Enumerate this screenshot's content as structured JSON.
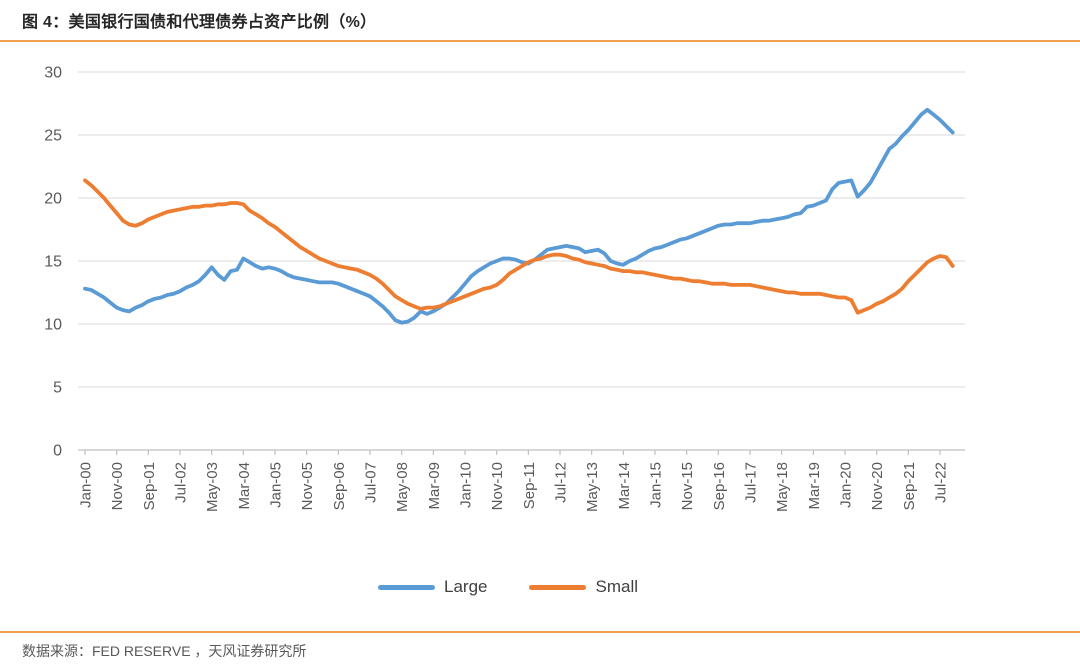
{
  "chart_data": {
    "type": "line",
    "title": "图 4：美国银行国债和代理债券占资产比例（%）",
    "source": "数据来源：FED RESERVE ，天风证券研究所",
    "ylim": [
      0,
      30
    ],
    "yticks": [
      0,
      5,
      10,
      15,
      20,
      25,
      30
    ],
    "x_start": "Jan-00",
    "x_end": "Nov-22",
    "months_per_point": 2,
    "xtick_every_points": 5,
    "xtick_labels": [
      "Jan-00",
      "Nov-00",
      "Sep-01",
      "Jul-02",
      "May-03",
      "Mar-04",
      "Jan-05",
      "Nov-05",
      "Sep-06",
      "Jul-07",
      "May-08",
      "Mar-09",
      "Jan-10",
      "Nov-10",
      "Sep-11",
      "Jul-12",
      "May-13",
      "Mar-14",
      "Jan-15",
      "Nov-15",
      "Sep-16",
      "Jul-17",
      "May-18",
      "Mar-19",
      "Jan-20",
      "Nov-20",
      "Sep-21",
      "Jul-22"
    ],
    "grid": "horizontal",
    "legend_position": "bottom-center",
    "legend": [
      {
        "name": "Large",
        "color": "#5B9BD5"
      },
      {
        "name": "Small",
        "color": "#ED7D31"
      }
    ],
    "series": [
      {
        "name": "Large",
        "color": "#5B9BD5",
        "values": [
          12.8,
          12.7,
          12.4,
          12.1,
          11.7,
          11.3,
          11.1,
          11.0,
          11.3,
          11.5,
          11.8,
          12.0,
          12.1,
          12.3,
          12.4,
          12.6,
          12.9,
          13.1,
          13.4,
          13.9,
          14.5,
          13.9,
          13.5,
          14.2,
          14.3,
          15.2,
          14.9,
          14.6,
          14.4,
          14.5,
          14.4,
          14.2,
          13.9,
          13.7,
          13.6,
          13.5,
          13.4,
          13.3,
          13.3,
          13.3,
          13.2,
          13.0,
          12.8,
          12.6,
          12.4,
          12.2,
          11.8,
          11.4,
          10.9,
          10.3,
          10.1,
          10.2,
          10.5,
          11.0,
          10.8,
          11.0,
          11.3,
          11.6,
          12.1,
          12.6,
          13.2,
          13.8,
          14.2,
          14.5,
          14.8,
          15.0,
          15.2,
          15.2,
          15.1,
          14.9,
          14.8,
          15.1,
          15.5,
          15.9,
          16.0,
          16.1,
          16.2,
          16.1,
          16.0,
          15.7,
          15.8,
          15.9,
          15.6,
          15.0,
          14.8,
          14.7,
          15.0,
          15.2,
          15.5,
          15.8,
          16.0,
          16.1,
          16.3,
          16.5,
          16.7,
          16.8,
          17.0,
          17.2,
          17.4,
          17.6,
          17.8,
          17.9,
          17.9,
          18.0,
          18.0,
          18.0,
          18.1,
          18.2,
          18.2,
          18.3,
          18.4,
          18.5,
          18.7,
          18.8,
          19.3,
          19.4,
          19.6,
          19.8,
          20.7,
          21.2,
          21.3,
          21.4,
          20.1,
          20.6,
          21.2,
          22.1,
          23.0,
          23.9,
          24.3,
          24.9,
          25.4,
          26.0,
          26.6,
          27.0,
          26.6,
          26.2,
          25.7,
          25.2
        ]
      },
      {
        "name": "Small",
        "color": "#ED7D31",
        "values": [
          21.4,
          21.0,
          20.5,
          20.0,
          19.4,
          18.8,
          18.2,
          17.9,
          17.8,
          18.0,
          18.3,
          18.5,
          18.7,
          18.9,
          19.0,
          19.1,
          19.2,
          19.3,
          19.3,
          19.4,
          19.4,
          19.5,
          19.5,
          19.6,
          19.6,
          19.5,
          19.0,
          18.7,
          18.4,
          18.0,
          17.7,
          17.3,
          16.9,
          16.5,
          16.1,
          15.8,
          15.5,
          15.2,
          15.0,
          14.8,
          14.6,
          14.5,
          14.4,
          14.3,
          14.1,
          13.9,
          13.6,
          13.2,
          12.7,
          12.2,
          11.9,
          11.6,
          11.4,
          11.2,
          11.3,
          11.3,
          11.4,
          11.6,
          11.8,
          12.0,
          12.2,
          12.4,
          12.6,
          12.8,
          12.9,
          13.1,
          13.5,
          14.0,
          14.3,
          14.6,
          14.9,
          15.1,
          15.2,
          15.4,
          15.5,
          15.5,
          15.4,
          15.2,
          15.1,
          14.9,
          14.8,
          14.7,
          14.6,
          14.4,
          14.3,
          14.2,
          14.2,
          14.1,
          14.1,
          14.0,
          13.9,
          13.8,
          13.7,
          13.6,
          13.6,
          13.5,
          13.4,
          13.4,
          13.3,
          13.2,
          13.2,
          13.2,
          13.1,
          13.1,
          13.1,
          13.1,
          13.0,
          12.9,
          12.8,
          12.7,
          12.6,
          12.5,
          12.5,
          12.4,
          12.4,
          12.4,
          12.4,
          12.3,
          12.2,
          12.1,
          12.1,
          11.9,
          10.9,
          11.1,
          11.3,
          11.6,
          11.8,
          12.1,
          12.4,
          12.8,
          13.4,
          13.9,
          14.4,
          14.9,
          15.2,
          15.4,
          15.3,
          14.6
        ]
      }
    ],
    "colors": {
      "accent_rule": "#F0A050",
      "gridline": "#D9D9D9",
      "axis": "#BFBFBF",
      "tick_label": "#595959",
      "title_text": "#262626",
      "legend_text": "#404040"
    }
  }
}
